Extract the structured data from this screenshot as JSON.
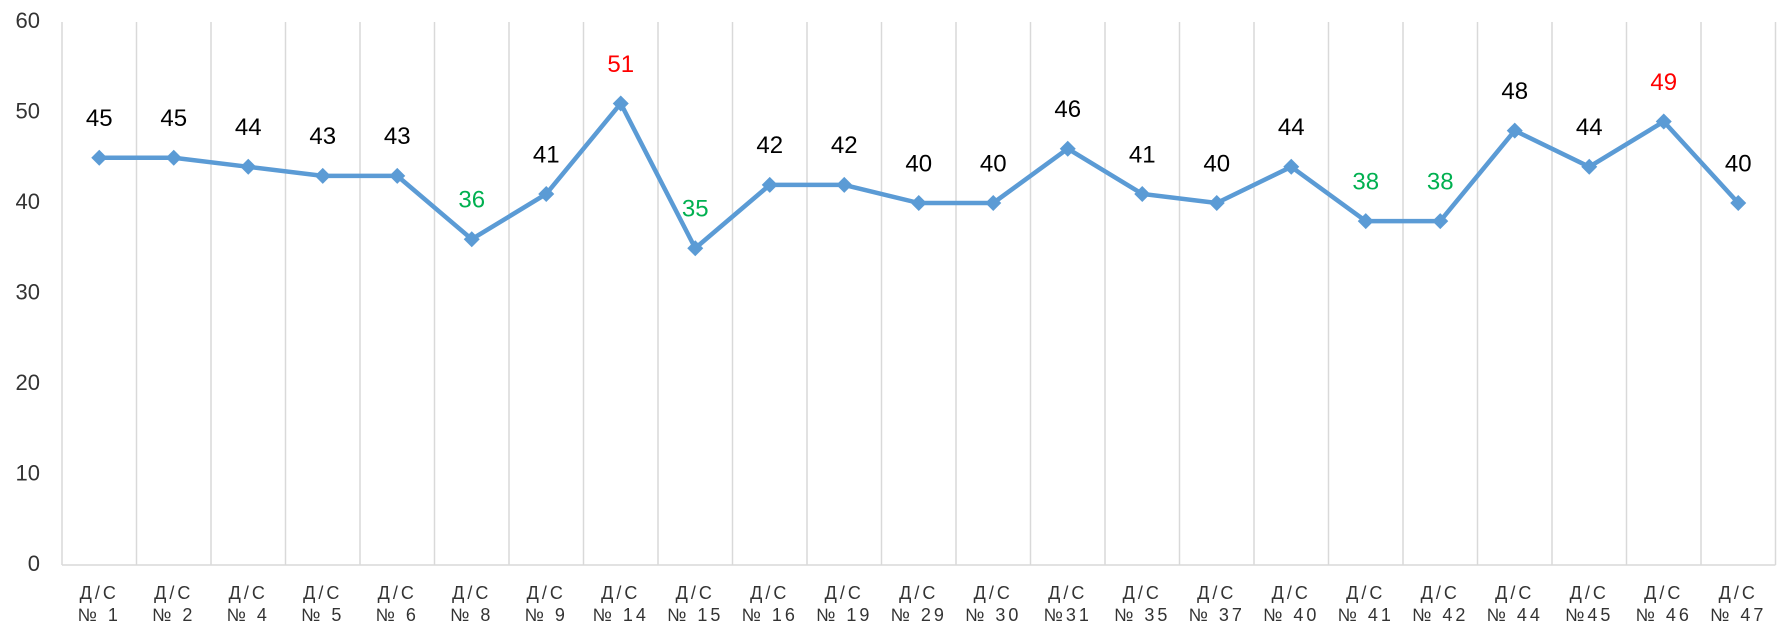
{
  "chart_data": {
    "type": "line",
    "categories": [
      "Д/С\n№ 1",
      "Д/С\n№ 2",
      "Д/С\n№ 4",
      "Д/С\n№ 5",
      "Д/С\n№ 6",
      "Д/С\n№ 8",
      "Д/С\n№ 9",
      "Д/С\n№ 14",
      "Д/С\n№ 15",
      "Д/С\n№ 16",
      "Д/С\n№ 19",
      "Д/С\n№ 29",
      "Д/С\n№ 30",
      "Д/С\n№31",
      "Д/С\n№ 35",
      "Д/С\n№ 37",
      "Д/С\n№ 40",
      "Д/С\n№ 41",
      "Д/С\n№ 42",
      "Д/С\n№ 44",
      "Д/С\n№45",
      "Д/С\n№ 46",
      "Д/С\n№ 47"
    ],
    "values": [
      45,
      45,
      44,
      43,
      43,
      36,
      41,
      51,
      35,
      42,
      42,
      40,
      40,
      46,
      41,
      40,
      44,
      38,
      38,
      48,
      44,
      49,
      40
    ],
    "color": "#5b9bd5",
    "label_colors": [
      "#000",
      "#000",
      "#000",
      "#000",
      "#000",
      "#00b050",
      "#000",
      "#ff0000",
      "#00b050",
      "#000",
      "#000",
      "#000",
      "#000",
      "#000",
      "#000",
      "#000",
      "#000",
      "#00b050",
      "#00b050",
      "#000",
      "#000",
      "#ff0000",
      "#000"
    ],
    "ylim": [
      0,
      60
    ],
    "yticks": [
      0,
      10,
      20,
      30,
      40,
      50,
      60
    ],
    "grid": false
  }
}
